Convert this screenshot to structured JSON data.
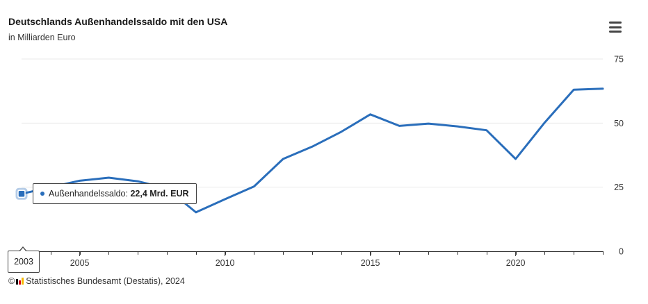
{
  "chart_data": {
    "type": "line",
    "title": "Deutschlands Außenhandelssaldo mit den USA",
    "subtitle": "in Milliarden Euro",
    "x": [
      2003,
      2004,
      2005,
      2006,
      2007,
      2008,
      2009,
      2010,
      2011,
      2012,
      2013,
      2014,
      2015,
      2016,
      2017,
      2018,
      2019,
      2020,
      2021,
      2022,
      2023
    ],
    "series": [
      {
        "name": "Außenhandelssaldo",
        "values": [
          22.4,
          25.0,
          27.5,
          28.7,
          27.3,
          24.5,
          15.2,
          20.3,
          25.3,
          36.0,
          40.8,
          46.6,
          53.4,
          48.9,
          49.8,
          48.7,
          47.2,
          36.0,
          50.2,
          63.0,
          63.4
        ]
      }
    ],
    "xlim": [
      2003,
      2023
    ],
    "ylim": [
      0,
      75
    ],
    "x_ticks": [
      2005,
      2010,
      2015,
      2020
    ],
    "y_ticks": [
      0,
      25,
      50,
      75
    ],
    "y_axis_side": "right",
    "grid": true,
    "color": "#2a6ebb"
  },
  "tooltip": {
    "label": "Außenhandelssaldo: ",
    "value": "22,4 Mrd. EUR",
    "x_label": "2003"
  },
  "credits": "Statistisches Bundesamt (Destatis), 2024",
  "credits_prefix": "©",
  "menu_icon": "hamburger-menu-icon"
}
